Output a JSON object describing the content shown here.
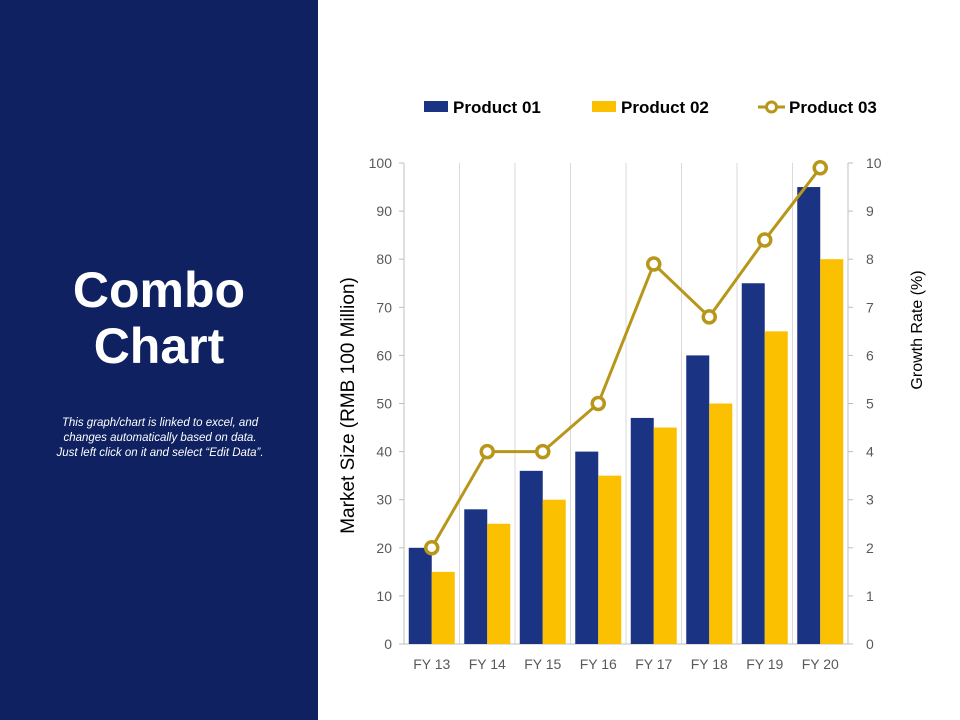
{
  "slide": {
    "title_lines": [
      "Combo",
      "Chart"
    ],
    "note_lines": [
      "This graph/chart is linked to excel, and",
      "changes automatically based on data.",
      "Just left click on it and select “Edit Data”."
    ]
  },
  "colors": {
    "panel": "#0f2160",
    "product01": "#1a3383",
    "product02": "#fbc000",
    "product03": "#b8961a",
    "grid": "#d9d9d9",
    "axis_text": "#595959"
  },
  "chart_data": {
    "type": "bar",
    "combo": true,
    "categories": [
      "FY 13",
      "FY 14",
      "FY 15",
      "FY 16",
      "FY 17",
      "FY 18",
      "FY 19",
      "FY 20"
    ],
    "series": [
      {
        "name": "Product 01",
        "type": "bar",
        "axis": "left",
        "values": [
          20,
          28,
          36,
          40,
          47,
          60,
          75,
          95
        ]
      },
      {
        "name": "Product 02",
        "type": "bar",
        "axis": "left",
        "values": [
          15,
          25,
          30,
          35,
          45,
          50,
          65,
          80
        ]
      },
      {
        "name": "Product 03",
        "type": "line",
        "axis": "right",
        "marker": "circle",
        "values": [
          2,
          4,
          4,
          5,
          7.9,
          6.8,
          8.4,
          9.9
        ]
      }
    ],
    "ylabel": "Market Size (RMB 100 Million)",
    "y2label": "Growth Rate (%)",
    "ylim": [
      0,
      100
    ],
    "yticks": [
      0,
      10,
      20,
      30,
      40,
      50,
      60,
      70,
      80,
      90,
      100
    ],
    "y2lim": [
      0,
      10
    ],
    "y2ticks": [
      0,
      1,
      2,
      3,
      4,
      5,
      6,
      7,
      8,
      9,
      10
    ],
    "legend_position": "top",
    "grid": "vertical"
  }
}
